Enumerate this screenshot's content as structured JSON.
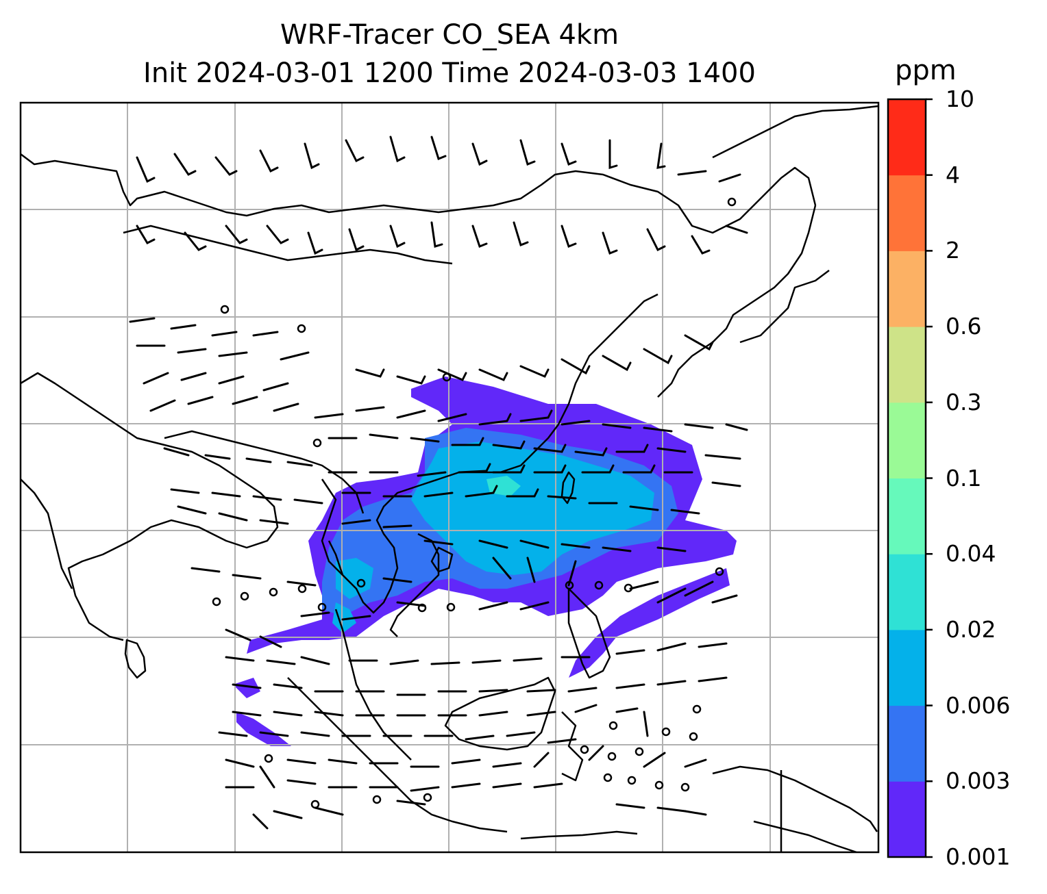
{
  "title": {
    "line1": "WRF-Tracer CO_SEA 4km",
    "line2": "Init 2024-03-01 1200 Time 2024-03-03 1400"
  },
  "colorbar": {
    "unit": "ppm",
    "levels": [
      "0.001",
      "0.003",
      "0.006",
      "0.02",
      "0.04",
      "0.1",
      "0.3",
      "0.6",
      "2",
      "4",
      "10"
    ],
    "colors": [
      "#6128f9",
      "#3474f3",
      "#04b1ea",
      "#2fe1d5",
      "#66f9bb",
      "#9afa96",
      "#cee388",
      "#fcb164",
      "#ff7338",
      "#ff2b18"
    ]
  },
  "map": {
    "gridlines": "on",
    "grid_color": "#b0b0b0",
    "coastline_color": "#000000",
    "features": [
      "coastlines",
      "country borders",
      "wind barbs",
      "CO tracer concentration contours"
    ]
  }
}
